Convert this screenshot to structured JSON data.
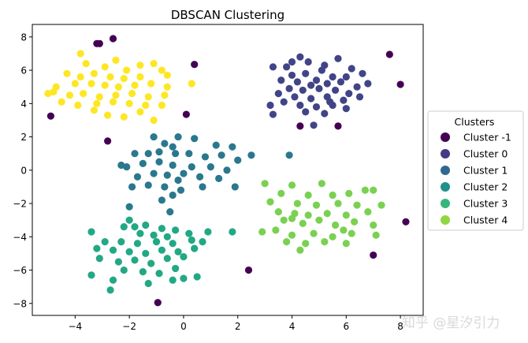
{
  "chart_data": {
    "type": "scatter",
    "title": "DBSCAN Clustering",
    "xlabel": "",
    "ylabel": "",
    "xlim": [
      -5.58,
      8.84
    ],
    "ylim": [
      -8.72,
      8.75
    ],
    "xticks": [
      -4,
      -2,
      0,
      2,
      4,
      6,
      8
    ],
    "yticks": [
      -8,
      -6,
      -4,
      -2,
      0,
      2,
      4,
      6,
      8
    ],
    "grid": false,
    "legend": {
      "title": "Clusters",
      "placement": "right-outside",
      "entries": [
        {
          "label": "Cluster -1",
          "color": "#440154"
        },
        {
          "label": "Cluster 0",
          "color": "#443983"
        },
        {
          "label": "Cluster 1",
          "color": "#31688e"
        },
        {
          "label": "Cluster 2",
          "color": "#21918c"
        },
        {
          "label": "Cluster 3",
          "color": "#35b779"
        },
        {
          "label": "Cluster 4",
          "color": "#90d743"
        }
      ]
    },
    "series": [
      {
        "label": -1,
        "color": "#440154",
        "points": [
          [
            -2.6,
            7.9
          ],
          [
            -3.2,
            7.6
          ],
          [
            -3.1,
            7.6
          ],
          [
            0.4,
            6.35
          ],
          [
            -4.9,
            3.25
          ],
          [
            0.1,
            3.35
          ],
          [
            -2.8,
            1.75
          ],
          [
            7.6,
            6.95
          ],
          [
            8.0,
            5.15
          ],
          [
            4.3,
            2.65
          ],
          [
            5.7,
            2.65
          ],
          [
            8.2,
            -3.1
          ],
          [
            7.0,
            -5.1
          ],
          [
            2.4,
            -6.0
          ],
          [
            -0.95,
            -7.95
          ]
        ]
      },
      {
        "label": 0,
        "color": "#414487",
        "points": [
          [
            4.3,
            6.8
          ],
          [
            4.6,
            6.5
          ],
          [
            3.3,
            6.2
          ],
          [
            3.8,
            6.2
          ],
          [
            5.2,
            6.3
          ],
          [
            6.2,
            6.1
          ],
          [
            6.6,
            5.8
          ],
          [
            4.0,
            5.7
          ],
          [
            4.5,
            5.8
          ],
          [
            5.5,
            5.6
          ],
          [
            6.0,
            5.6
          ],
          [
            3.6,
            5.4
          ],
          [
            4.2,
            5.3
          ],
          [
            4.9,
            5.4
          ],
          [
            5.3,
            5.2
          ],
          [
            5.8,
            5.3
          ],
          [
            6.4,
            5.0
          ],
          [
            3.9,
            4.9
          ],
          [
            4.4,
            4.8
          ],
          [
            5.0,
            4.9
          ],
          [
            5.6,
            4.8
          ],
          [
            6.1,
            4.6
          ],
          [
            3.5,
            4.6
          ],
          [
            4.1,
            4.4
          ],
          [
            4.7,
            4.3
          ],
          [
            5.3,
            4.4
          ],
          [
            5.9,
            4.2
          ],
          [
            6.5,
            4.4
          ],
          [
            3.7,
            4.1
          ],
          [
            4.3,
            3.9
          ],
          [
            4.9,
            3.8
          ],
          [
            5.5,
            3.9
          ],
          [
            6.0,
            3.7
          ],
          [
            3.2,
            3.9
          ],
          [
            3.3,
            3.35
          ],
          [
            4.5,
            3.5
          ],
          [
            5.2,
            3.4
          ],
          [
            4.7,
            5.1
          ],
          [
            5.1,
            6.0
          ],
          [
            4.8,
            2.7
          ],
          [
            5.7,
            6.7
          ],
          [
            4.0,
            6.5
          ],
          [
            6.8,
            5.2
          ],
          [
            5.4,
            4.1
          ]
        ]
      },
      {
        "label": 1,
        "color": "#2a788e",
        "points": [
          [
            -1.1,
            2.0
          ],
          [
            -0.2,
            2.0
          ],
          [
            0.4,
            1.9
          ],
          [
            -0.7,
            1.6
          ],
          [
            -0.4,
            1.4
          ],
          [
            1.2,
            1.5
          ],
          [
            1.8,
            1.4
          ],
          [
            -1.8,
            1.0
          ],
          [
            -1.3,
            1.0
          ],
          [
            -0.9,
            1.1
          ],
          [
            -0.3,
            1.0
          ],
          [
            0.2,
            1.0
          ],
          [
            0.8,
            0.8
          ],
          [
            1.4,
            0.9
          ],
          [
            2.5,
            0.9
          ],
          [
            -2.1,
            0.2
          ],
          [
            -1.5,
            0.4
          ],
          [
            -0.9,
            0.5
          ],
          [
            -0.4,
            0.3
          ],
          [
            0.3,
            0.2
          ],
          [
            1.0,
            0.2
          ],
          [
            1.6,
            0.0
          ],
          [
            2.0,
            0.6
          ],
          [
            -1.7,
            -0.4
          ],
          [
            -1.1,
            -0.2
          ],
          [
            -0.6,
            -0.3
          ],
          [
            0.0,
            -0.2
          ],
          [
            0.6,
            -0.4
          ],
          [
            1.3,
            -0.5
          ],
          [
            -1.9,
            -1.0
          ],
          [
            -1.3,
            -0.9
          ],
          [
            -0.7,
            -1.0
          ],
          [
            -0.1,
            -1.2
          ],
          [
            0.7,
            -1.0
          ],
          [
            1.9,
            -1.0
          ],
          [
            -0.8,
            -1.8
          ],
          [
            -0.4,
            -1.5
          ],
          [
            -0.5,
            -2.5
          ],
          [
            -2.0,
            -2.2
          ],
          [
            -2.3,
            0.3
          ],
          [
            3.9,
            0.9
          ],
          [
            -0.2,
            -0.6
          ]
        ]
      },
      {
        "label": 2,
        "color": "#22a884",
        "points": [
          [
            -2.0,
            -3.0
          ],
          [
            -2.2,
            -3.4
          ],
          [
            -1.8,
            -3.4
          ],
          [
            -1.4,
            -3.3
          ],
          [
            -0.8,
            -3.5
          ],
          [
            -0.3,
            -3.6
          ],
          [
            -3.4,
            -3.7
          ],
          [
            -1.6,
            -3.8
          ],
          [
            -1.1,
            -3.9
          ],
          [
            -0.6,
            -4.0
          ],
          [
            0.2,
            -3.8
          ],
          [
            0.9,
            -3.7
          ],
          [
            1.8,
            -3.7
          ],
          [
            -2.9,
            -4.3
          ],
          [
            -2.3,
            -4.3
          ],
          [
            -1.7,
            -4.4
          ],
          [
            -1.0,
            -4.3
          ],
          [
            -0.4,
            -4.4
          ],
          [
            0.3,
            -4.2
          ],
          [
            0.7,
            -4.3
          ],
          [
            -3.2,
            -4.7
          ],
          [
            -2.6,
            -4.8
          ],
          [
            -2.0,
            -4.9
          ],
          [
            -1.4,
            -5.0
          ],
          [
            -0.8,
            -4.8
          ],
          [
            -0.2,
            -4.9
          ],
          [
            0.4,
            -4.7
          ],
          [
            -3.1,
            -5.3
          ],
          [
            -2.4,
            -5.5
          ],
          [
            -1.8,
            -5.4
          ],
          [
            -1.2,
            -5.6
          ],
          [
            -0.6,
            -5.3
          ],
          [
            0.0,
            -5.2
          ],
          [
            -2.2,
            -6.0
          ],
          [
            -1.5,
            -6.1
          ],
          [
            -0.9,
            -6.2
          ],
          [
            -0.3,
            -5.9
          ],
          [
            -3.4,
            -6.3
          ],
          [
            -2.6,
            -6.6
          ],
          [
            -2.7,
            -7.2
          ],
          [
            -1.3,
            -6.8
          ],
          [
            0.0,
            -6.5
          ],
          [
            0.5,
            -6.4
          ],
          [
            -0.4,
            -6.6
          ]
        ]
      },
      {
        "label": 3,
        "color": "#7ad151",
        "points": [
          [
            3.0,
            -0.8
          ],
          [
            4.0,
            -0.9
          ],
          [
            5.1,
            -0.8
          ],
          [
            6.7,
            -1.2
          ],
          [
            3.6,
            -1.4
          ],
          [
            4.6,
            -1.5
          ],
          [
            5.5,
            -1.5
          ],
          [
            6.1,
            -1.4
          ],
          [
            7.0,
            -1.2
          ],
          [
            3.2,
            -1.9
          ],
          [
            4.2,
            -2.0
          ],
          [
            4.9,
            -2.1
          ],
          [
            5.7,
            -2.0
          ],
          [
            6.4,
            -2.1
          ],
          [
            7.3,
            -2.1
          ],
          [
            3.5,
            -2.5
          ],
          [
            4.1,
            -2.6
          ],
          [
            4.6,
            -2.7
          ],
          [
            5.3,
            -2.6
          ],
          [
            6.0,
            -2.7
          ],
          [
            6.8,
            -2.5
          ],
          [
            2.9,
            -3.7
          ],
          [
            3.7,
            -3.0
          ],
          [
            4.4,
            -3.2
          ],
          [
            5.0,
            -3.0
          ],
          [
            5.6,
            -3.3
          ],
          [
            6.3,
            -3.1
          ],
          [
            7.0,
            -3.3
          ],
          [
            3.4,
            -3.6
          ],
          [
            4.0,
            -3.9
          ],
          [
            4.8,
            -3.8
          ],
          [
            5.5,
            -4.0
          ],
          [
            6.2,
            -3.8
          ],
          [
            7.1,
            -3.9
          ],
          [
            3.8,
            -4.3
          ],
          [
            4.5,
            -4.4
          ],
          [
            5.2,
            -4.3
          ],
          [
            6.0,
            -4.4
          ],
          [
            4.3,
            -4.8
          ],
          [
            4.0,
            -2.9
          ],
          [
            5.9,
            -3.6
          ]
        ]
      },
      {
        "label": 4,
        "color": "#fde725",
        "points": [
          [
            -3.8,
            7.0
          ],
          [
            -2.5,
            6.6
          ],
          [
            -1.6,
            6.3
          ],
          [
            -1.1,
            6.4
          ],
          [
            -0.8,
            6.0
          ],
          [
            -3.6,
            6.4
          ],
          [
            -2.9,
            6.2
          ],
          [
            -2.1,
            6.0
          ],
          [
            -4.3,
            5.8
          ],
          [
            -3.8,
            5.6
          ],
          [
            -3.3,
            5.8
          ],
          [
            -2.7,
            5.6
          ],
          [
            -2.2,
            5.5
          ],
          [
            -1.6,
            5.6
          ],
          [
            -0.6,
            5.7
          ],
          [
            -4.7,
            5.0
          ],
          [
            -4.0,
            5.2
          ],
          [
            -3.4,
            5.2
          ],
          [
            -2.9,
            5.1
          ],
          [
            -2.4,
            5.0
          ],
          [
            -1.8,
            5.1
          ],
          [
            -1.2,
            5.2
          ],
          [
            -0.6,
            5.0
          ],
          [
            0.3,
            5.2
          ],
          [
            -4.2,
            4.5
          ],
          [
            -3.7,
            4.6
          ],
          [
            -3.1,
            4.4
          ],
          [
            -2.5,
            4.5
          ],
          [
            -1.9,
            4.6
          ],
          [
            -1.3,
            4.4
          ],
          [
            -0.7,
            4.5
          ],
          [
            -4.5,
            4.1
          ],
          [
            -3.9,
            3.9
          ],
          [
            -3.2,
            4.0
          ],
          [
            -2.6,
            4.1
          ],
          [
            -2.0,
            4.0
          ],
          [
            -1.4,
            3.9
          ],
          [
            -0.8,
            3.9
          ],
          [
            -3.3,
            3.6
          ],
          [
            -2.8,
            3.3
          ],
          [
            -2.2,
            3.2
          ],
          [
            -1.6,
            3.5
          ],
          [
            -1.1,
            3.0
          ],
          [
            -5.0,
            4.6
          ],
          [
            -4.8,
            4.7
          ]
        ]
      }
    ]
  },
  "watermark": "知乎 @星汐引力"
}
